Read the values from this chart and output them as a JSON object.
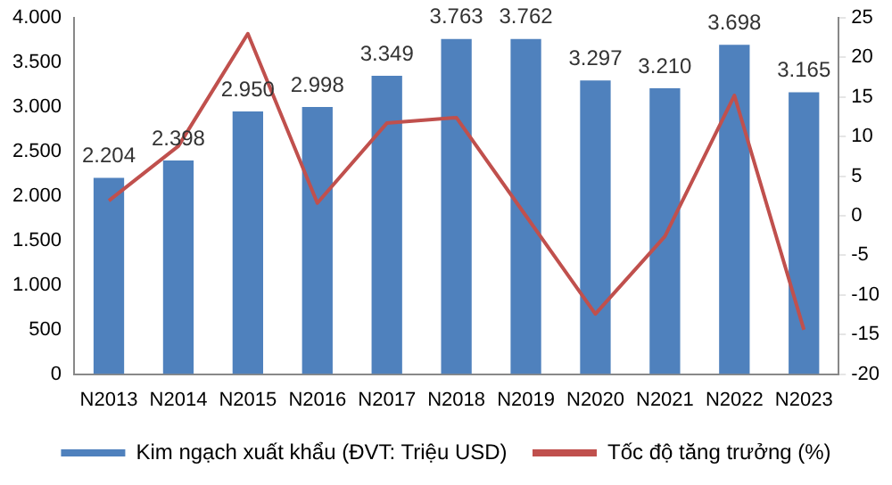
{
  "chart_data": {
    "type": "bar",
    "categories": [
      "N2013",
      "N2014",
      "N2015",
      "N2016",
      "N2017",
      "N2018",
      "N2019",
      "N2020",
      "N2021",
      "N2022",
      "N2023"
    ],
    "series": [
      {
        "name": "Kim ngạch xuất khẩu (ĐVT: Triệu USD)",
        "color": "#4f81bd",
        "values": [
          2204,
          2398,
          2950,
          2998,
          3349,
          3763,
          3762,
          3297,
          3210,
          3698,
          3165
        ],
        "value_labels": [
          "2.204",
          "2.398",
          "2.950",
          "2.998",
          "3.349",
          "3.763",
          "3.762",
          "3.297",
          "3.210",
          "3.698",
          "3.165"
        ]
      },
      {
        "name": "Tốc độ tăng trưởng (%)",
        "type": "line",
        "axis": "y2",
        "color": "#c0504d",
        "values": [
          1.9,
          8.8,
          23.0,
          1.6,
          11.7,
          12.4,
          0.0,
          -12.4,
          -2.6,
          15.2,
          -14.4
        ]
      }
    ],
    "ylim": [
      0,
      4000
    ],
    "yticks": [
      0,
      500,
      {
        "value": 1000,
        "label": "1.000"
      },
      {
        "value": 1500,
        "label": "1.500"
      },
      {
        "value": 2000,
        "label": "2.000"
      },
      {
        "value": 2500,
        "label": "2.500"
      },
      {
        "value": 3000,
        "label": "3.000"
      },
      {
        "value": 3500,
        "label": "3.500"
      },
      {
        "value": 4000,
        "label": "4.000"
      }
    ],
    "y2lim": [
      -20,
      25
    ],
    "y2ticks": [
      -20,
      -15,
      -10,
      -5,
      0,
      5,
      10,
      15,
      20,
      25
    ],
    "grid": false,
    "legend": "bottom",
    "marker": "none"
  }
}
